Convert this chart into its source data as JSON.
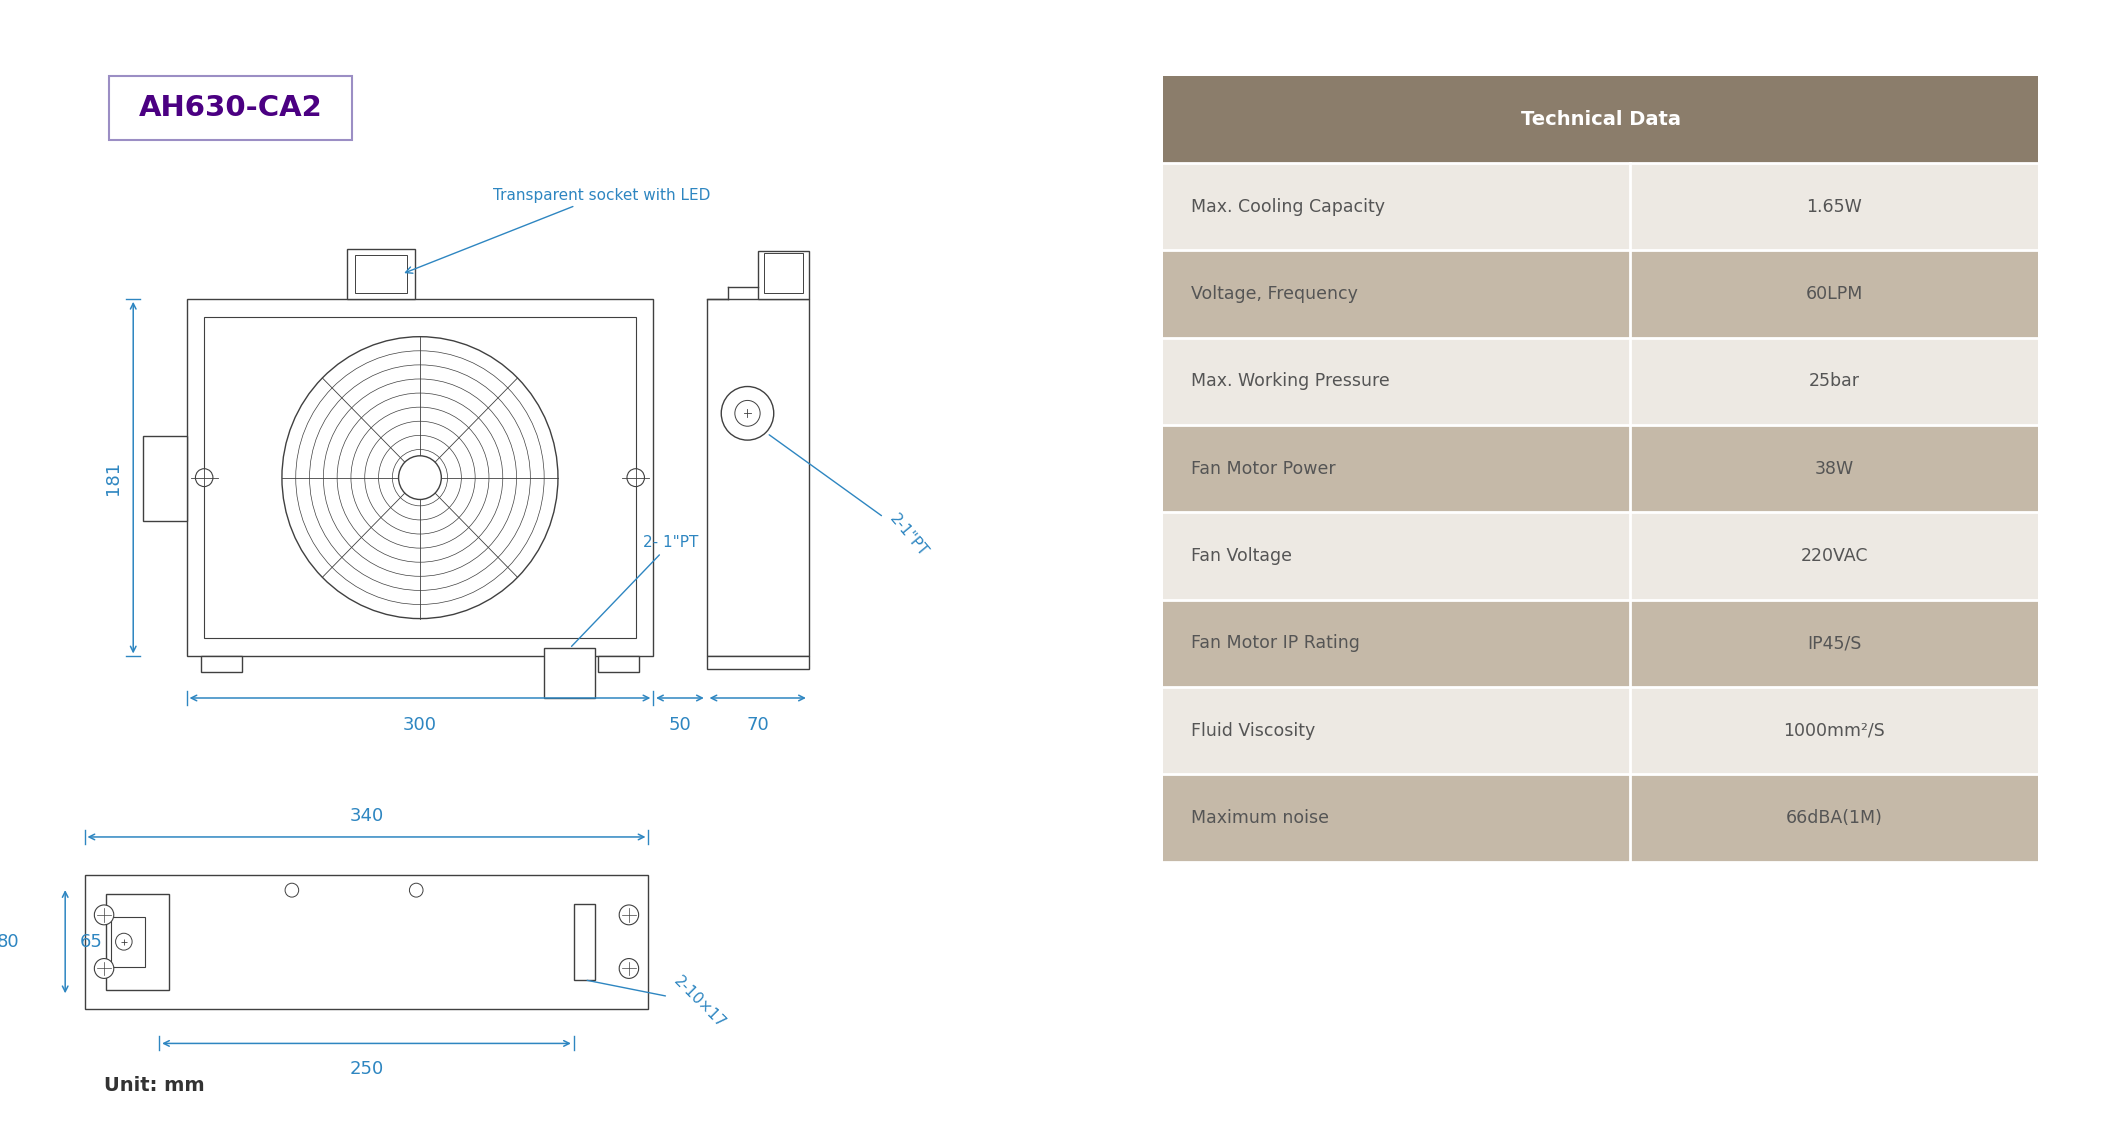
{
  "title": "AH630-CA2",
  "title_color": "#4B0082",
  "title_border_color": "#9B8EC4",
  "drawing_color": "#404040",
  "dim_color": "#2E86C1",
  "table_header_bg": "#8B7D6B",
  "table_header_text": "#FFFFFF",
  "table_row_colors": [
    "#EDE9E3",
    "#C5B9A8"
  ],
  "table_text_color": "#555555",
  "table_title": "Technical Data",
  "table_rows": [
    [
      "Max. Cooling Capacity",
      "1.65W"
    ],
    [
      "Voltage, Frequency",
      "60LPM"
    ],
    [
      "Max. Working Pressure",
      "25bar"
    ],
    [
      "Fan Motor Power",
      "38W"
    ],
    [
      "Fan Voltage",
      "220VAC"
    ],
    [
      "Fan Motor IP Rating",
      "IP45/S"
    ],
    [
      "Fluid Viscosity",
      "1000mm²/S"
    ],
    [
      "Maximum noise",
      "66dBA(1M)"
    ]
  ],
  "unit_text": "Unit: mm"
}
